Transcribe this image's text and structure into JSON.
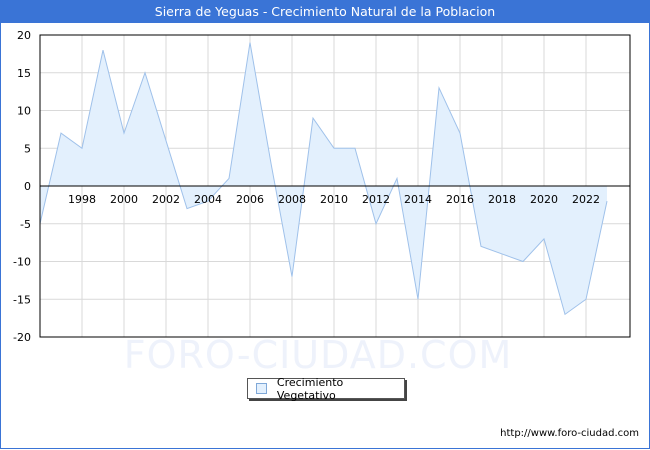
{
  "header": {
    "title": "Sierra de Yeguas - Crecimiento Natural de la Poblacion"
  },
  "legend": {
    "label": "Crecimiento Vegetativo",
    "swatch_color": "#e3f0fd",
    "line_color": "#9fc1ea"
  },
  "watermark": "FORO-CIUDAD.COM",
  "footer": {
    "url": "http://www.foro-ciudad.com"
  },
  "colors": {
    "title_bar": "#3a74d6",
    "area_fill": "#e3f0fd",
    "line": "#9fc1ea",
    "grid": "#d9d9d9"
  },
  "axes": {
    "y_ticks": [
      "20",
      "15",
      "10",
      "5",
      "0",
      "-5",
      "-10",
      "-15",
      "-20"
    ],
    "x_ticks": [
      "1998",
      "2000",
      "2002",
      "2004",
      "2006",
      "2008",
      "2010",
      "2012",
      "2014",
      "2016",
      "2018",
      "2020",
      "2022"
    ]
  },
  "chart_data": {
    "type": "area",
    "title": "Sierra de Yeguas - Crecimiento Natural de la Poblacion",
    "xlabel": "",
    "ylabel": "",
    "ylim": [
      -20,
      20
    ],
    "grid": true,
    "legend_position": "bottom",
    "x": [
      1996,
      1997,
      1998,
      1999,
      2000,
      2001,
      2002,
      2003,
      2004,
      2005,
      2006,
      2007,
      2008,
      2009,
      2010,
      2011,
      2012,
      2013,
      2014,
      2015,
      2016,
      2017,
      2018,
      2019,
      2020,
      2021,
      2022,
      2023
    ],
    "series": [
      {
        "name": "Crecimiento Vegetativo",
        "values": [
          -5,
          7,
          5,
          18,
          7,
          15,
          6,
          -3,
          -2,
          1,
          19,
          3,
          -12,
          9,
          5,
          5,
          -5,
          1,
          -15,
          13,
          7,
          -8,
          -9,
          -10,
          -7,
          -17,
          -15,
          -2
        ]
      }
    ]
  }
}
